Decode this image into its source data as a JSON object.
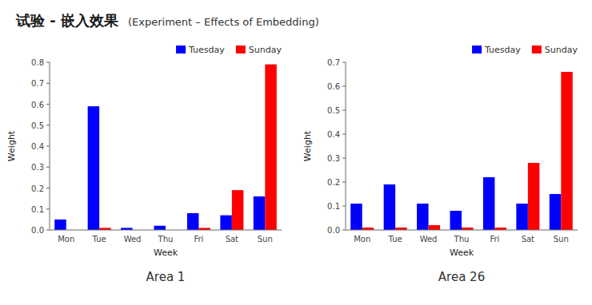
{
  "title": "试验 - 嵌入效果",
  "subtitle": "(Experiment – Effects of Embedding)",
  "chart_data": [
    {
      "type": "bar",
      "title": "Area 1",
      "xlabel": "Week",
      "ylabel": "Weight",
      "categories": [
        "Mon",
        "Tue",
        "Wed",
        "Thu",
        "Fri",
        "Sat",
        "Sun"
      ],
      "series": [
        {
          "name": "Tuesday",
          "color": "#0000ff",
          "values": [
            0.05,
            0.59,
            0.01,
            0.02,
            0.08,
            0.07,
            0.16
          ]
        },
        {
          "name": "Sunday",
          "color": "#ff0000",
          "values": [
            0.0,
            0.01,
            0.0,
            0.0,
            0.01,
            0.19,
            0.79
          ]
        }
      ],
      "ylim": [
        0.0,
        0.8
      ],
      "yticks": [
        {
          "value": 0,
          "label": "0.0"
        },
        0.1,
        0.2,
        0.3,
        0.4,
        0.5,
        0.6,
        0.7,
        0.8
      ],
      "legend": "upper right",
      "grid": false
    },
    {
      "type": "bar",
      "title": "Area 26",
      "xlabel": "Week",
      "ylabel": "Weight",
      "categories": [
        "Mon",
        "Tue",
        "Wed",
        "Thu",
        "Fri",
        "Sat",
        "Sun"
      ],
      "series": [
        {
          "name": "Tuesday",
          "color": "#0000ff",
          "values": [
            0.11,
            0.19,
            0.11,
            0.08,
            0.22,
            0.11,
            0.15
          ]
        },
        {
          "name": "Sunday",
          "color": "#ff0000",
          "values": [
            0.01,
            0.01,
            0.02,
            0.01,
            0.01,
            0.28,
            0.66
          ]
        }
      ],
      "ylim": [
        0.0,
        0.7
      ],
      "yticks": [
        {
          "value": 0,
          "label": "0.0"
        },
        0.1,
        0.2,
        0.3,
        0.4,
        0.5,
        0.6,
        0.7
      ],
      "legend": "upper right",
      "grid": false
    }
  ]
}
